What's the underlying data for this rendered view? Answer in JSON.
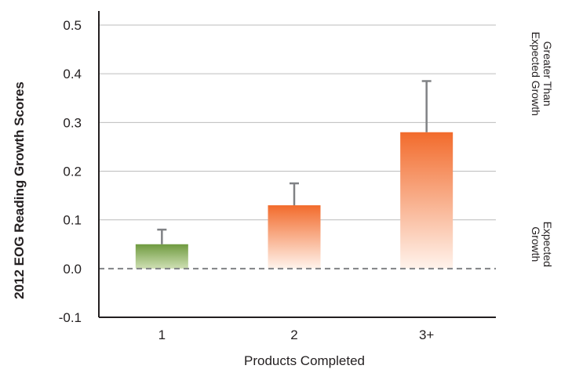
{
  "chart_data": {
    "type": "bar",
    "categories": [
      "1",
      "2",
      "3+"
    ],
    "values": [
      0.05,
      0.13,
      0.28
    ],
    "errors_upper": [
      0.08,
      0.175,
      0.385
    ],
    "bar_colors": [
      "#7da04c",
      "#f3733a",
      "#f3733a"
    ],
    "title": "",
    "xlabel": "Products Completed",
    "ylabel": "2012 EOG Reading Growth Scores",
    "ylim": [
      -0.1,
      0.5
    ],
    "yticks": [
      "0.5",
      "0.4",
      "0.3",
      "0.2",
      "0.1",
      "0.0",
      "-0.1"
    ],
    "ytick_values": [
      0.5,
      0.4,
      0.3,
      0.2,
      0.1,
      0.0,
      -0.1
    ],
    "grid": true,
    "reference_line": {
      "value": 0.0,
      "style": "dashed"
    },
    "right_annotations": [
      {
        "lines": [
          "Greater Than",
          "Expected Growth"
        ],
        "at": 0.4
      },
      {
        "lines": [
          "Expected",
          "Growth"
        ],
        "at": 0.05
      }
    ]
  }
}
